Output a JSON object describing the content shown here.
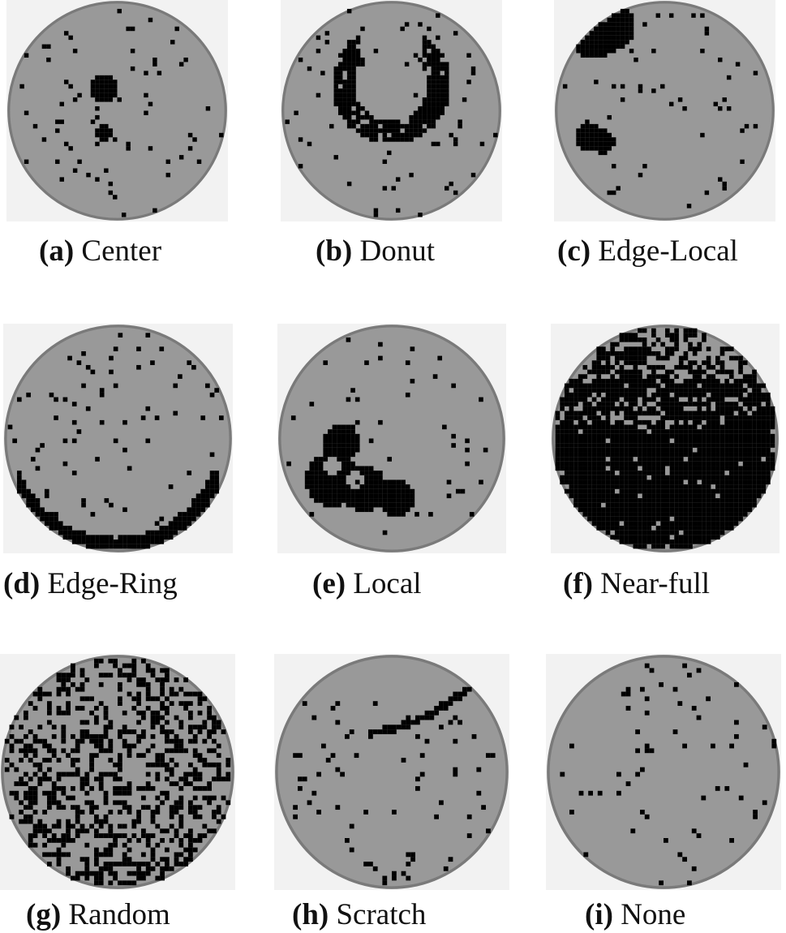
{
  "colors": {
    "background": "#f2f2f2",
    "die": "#999999",
    "defect": "#000000",
    "edge": "#7a7a7a"
  },
  "panels": [
    {
      "letter": "(a)",
      "label": "Center",
      "pattern": "center"
    },
    {
      "letter": "(b)",
      "label": "Donut",
      "pattern": "donut"
    },
    {
      "letter": "(c)",
      "label": "Edge-Local",
      "pattern": "edge-local"
    },
    {
      "letter": "(d)",
      "label": "Edge-Ring",
      "pattern": "edge-ring"
    },
    {
      "letter": "(e)",
      "label": "Local",
      "pattern": "local"
    },
    {
      "letter": "(f)",
      "label": "Near-full",
      "pattern": "near-full"
    },
    {
      "letter": "(g)",
      "label": "Random",
      "pattern": "random"
    },
    {
      "letter": "(h)",
      "label": "Scratch",
      "pattern": "scratch"
    },
    {
      "letter": "(i)",
      "label": "None",
      "pattern": "none"
    }
  ]
}
